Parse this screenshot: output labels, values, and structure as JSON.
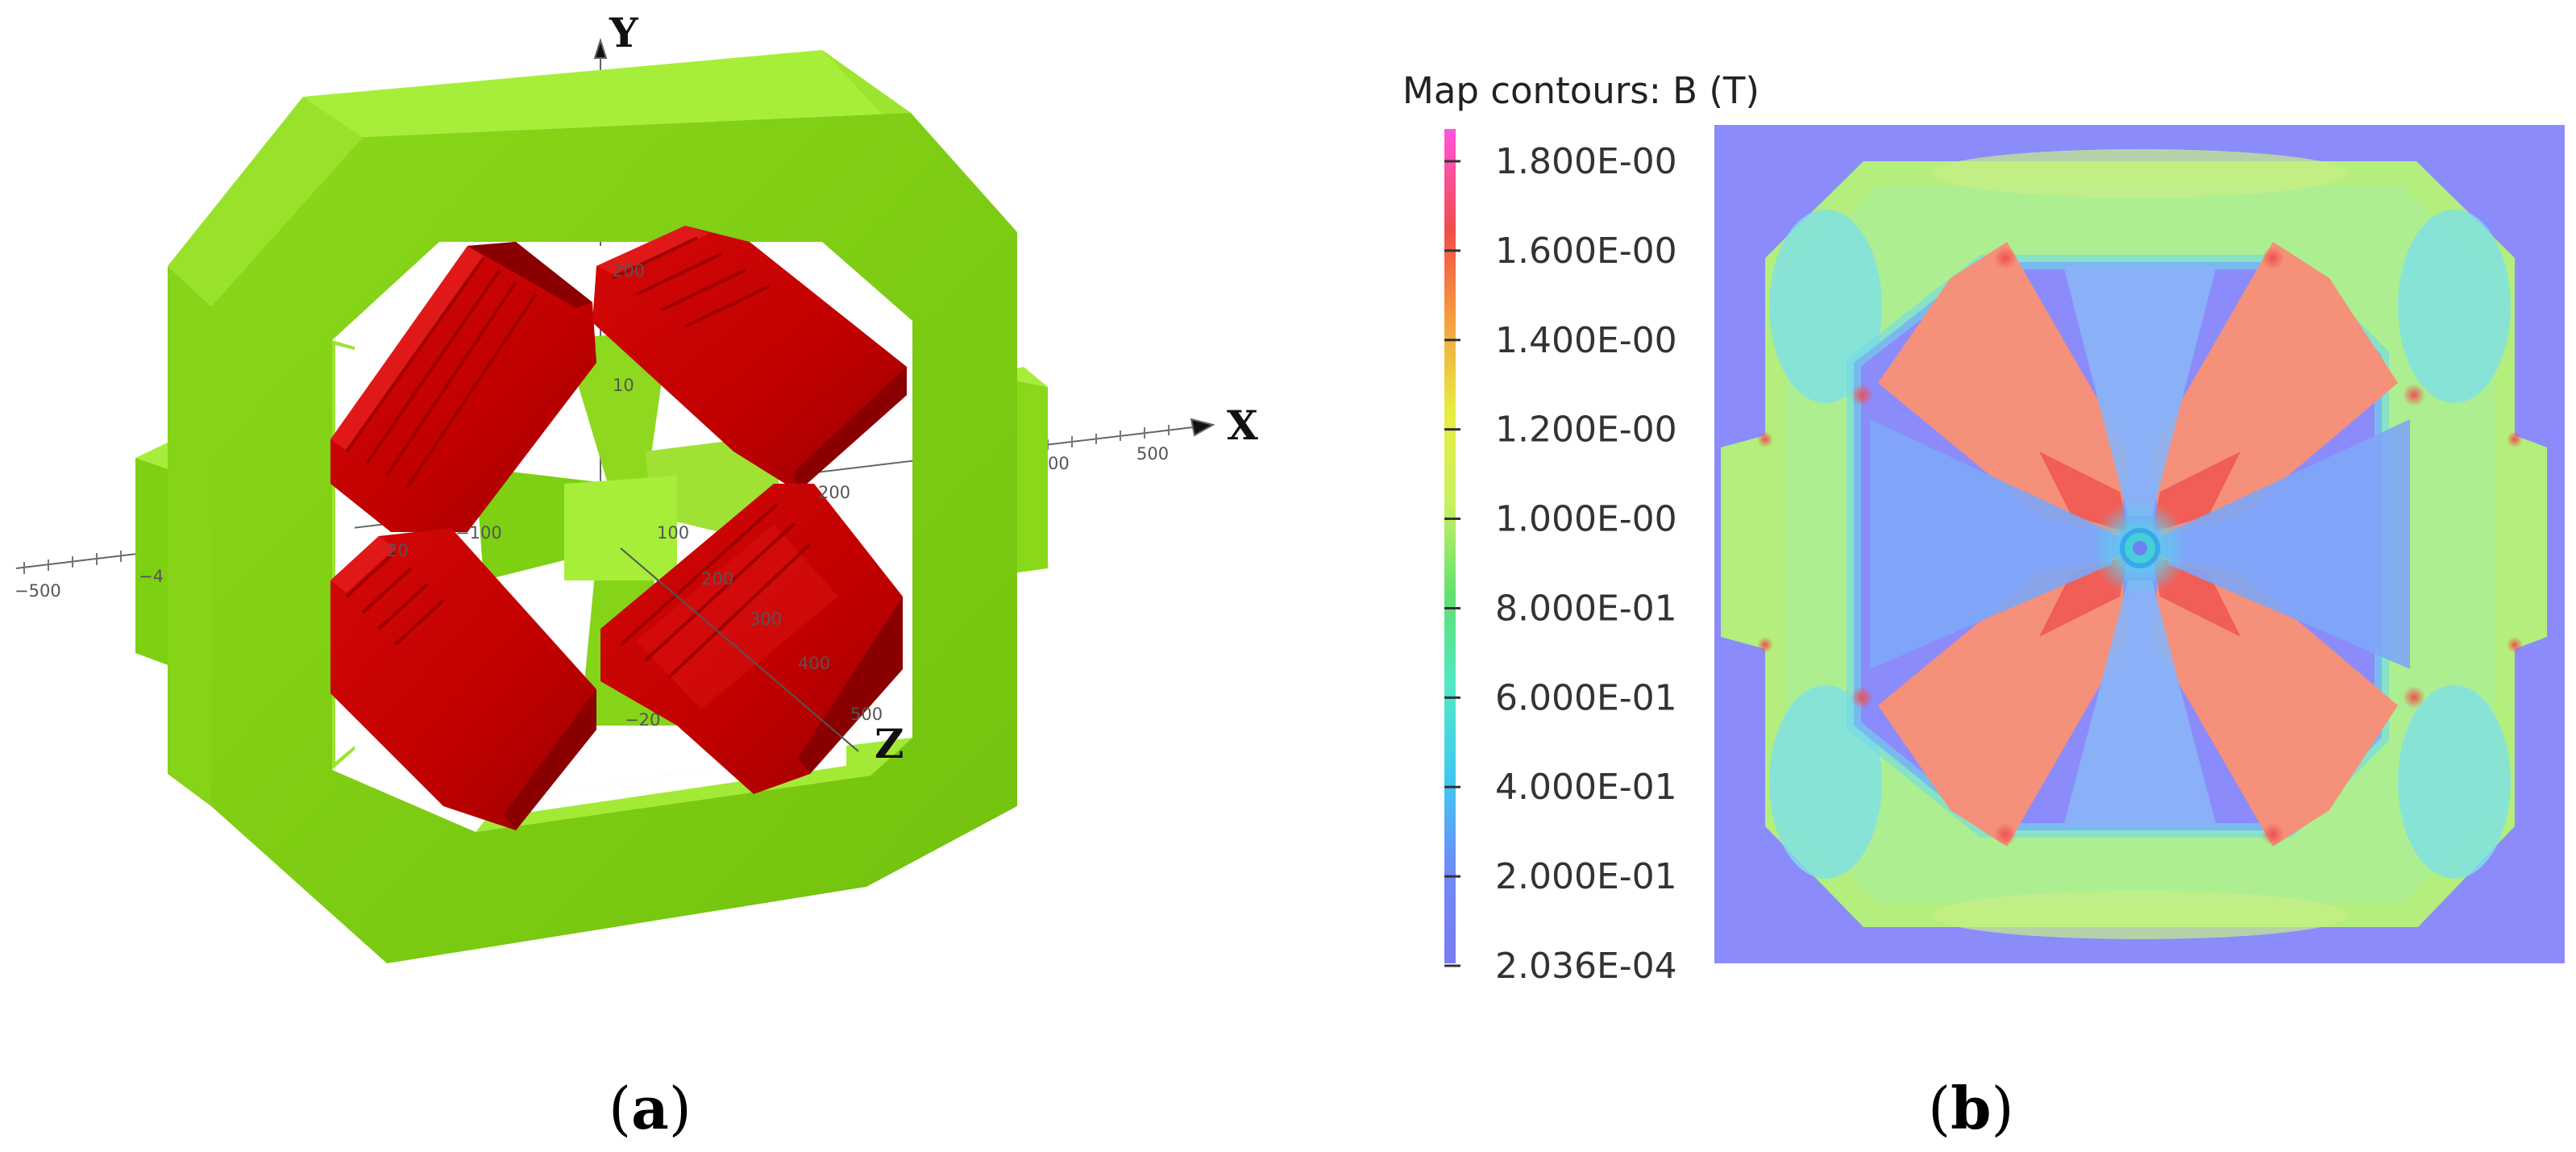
{
  "panel_a": {
    "label_open": "(",
    "label_letter": "a",
    "label_close": ")",
    "axes": {
      "x": "X",
      "y": "Y",
      "z": "Z"
    },
    "tick_labels": [
      {
        "name": "tick-x-500",
        "text": "500"
      },
      {
        "name": "tick-x-00",
        "text": "00"
      },
      {
        "name": "tick-x-neg500",
        "text": "−500"
      },
      {
        "name": "tick-x-neg4",
        "text": "−4"
      },
      {
        "name": "tick-x-neg100",
        "text": "−100"
      },
      {
        "name": "tick-x-100",
        "text": "100"
      },
      {
        "name": "tick-x-200",
        "text": "200"
      },
      {
        "name": "tick-y-200",
        "text": "200"
      },
      {
        "name": "tick-y-10",
        "text": "10"
      },
      {
        "name": "tick-y-20",
        "text": "20"
      },
      {
        "name": "tick-y-neg20",
        "text": "−20"
      },
      {
        "name": "tick-z-200",
        "text": "200"
      },
      {
        "name": "tick-z-300",
        "text": "300"
      },
      {
        "name": "tick-z-400",
        "text": "400"
      },
      {
        "name": "tick-z-500",
        "text": "500"
      }
    ],
    "colors": {
      "yoke": "#7ed012",
      "yoke_top": "#a6ee3a",
      "yoke_side": "#5fa80c",
      "coil": "#c80000",
      "coil_dark": "#8a0000",
      "coil_light": "#e01818"
    }
  },
  "panel_b": {
    "label_open": "(",
    "label_letter": "b",
    "label_close": ")",
    "legend": {
      "title": "Map contours: B (T)",
      "ticks": [
        "1.800E-00",
        "1.600E-00",
        "1.400E-00",
        "1.200E-00",
        "1.000E-00",
        "8.000E-01",
        "6.000E-01",
        "4.000E-01",
        "2.000E-01",
        "2.036E-04"
      ],
      "gradient_colors": [
        "#ff55dd",
        "#f24c4c",
        "#f4a040",
        "#e8ee40",
        "#c8f060",
        "#60e070",
        "#50e8c8",
        "#40c8f0",
        "#6f8af6",
        "#7a7cf0"
      ]
    },
    "colors": {
      "background": "#8b8bfb",
      "yoke": "#b8ef80",
      "yoke_inner": "#70e0e8",
      "pole": "#f58f7c",
      "pole_tip": "#f04848"
    }
  }
}
